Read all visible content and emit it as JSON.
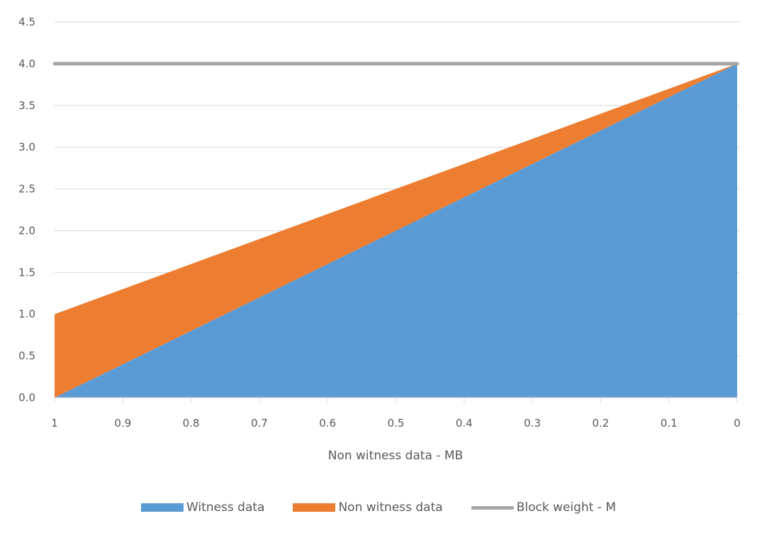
{
  "chart_data": {
    "type": "area",
    "stacked": true,
    "title": "",
    "xlabel": "Non witness data  - MB",
    "ylabel": "",
    "x": [
      1,
      0.9,
      0.8,
      0.7,
      0.6,
      0.5,
      0.4,
      0.3,
      0.2,
      0.1,
      0
    ],
    "x_tick_labels": [
      "1",
      "0.9",
      "0.8",
      "0.7",
      "0.6",
      "0.5",
      "0.4",
      "0.3",
      "0.2",
      "0.1",
      "0"
    ],
    "y_tick_labels": [
      "0.0",
      "0.5",
      "1.0",
      "1.5",
      "2.0",
      "2.5",
      "3.0",
      "3.5",
      "4.0",
      "4.5"
    ],
    "ylim": [
      0,
      4.5
    ],
    "grid": true,
    "legend_position": "bottom",
    "series": [
      {
        "name": "Witness data",
        "kind": "area",
        "color": "#5b9bd5",
        "values": [
          0,
          0.4,
          0.8,
          1.2,
          1.6,
          2.0,
          2.4,
          2.8,
          3.2,
          3.6,
          4.0
        ]
      },
      {
        "name": "Non witness data",
        "kind": "area",
        "color": "#ed7d31",
        "values": [
          1,
          0.9,
          0.8,
          0.7,
          0.6,
          0.5,
          0.4,
          0.3,
          0.2,
          0.1,
          0
        ]
      },
      {
        "name": "Block weight - M",
        "kind": "line",
        "color": "#a5a5a5",
        "values": [
          4,
          4,
          4,
          4,
          4,
          4,
          4,
          4,
          4,
          4,
          4
        ]
      }
    ]
  },
  "legend": {
    "items": [
      {
        "label": "Witness data",
        "color": "#5b9bd5",
        "kind": "area"
      },
      {
        "label": "Non witness data",
        "color": "#ed7d31",
        "kind": "area"
      },
      {
        "label": "Block weight - M",
        "color": "#a5a5a5",
        "kind": "line"
      }
    ]
  }
}
